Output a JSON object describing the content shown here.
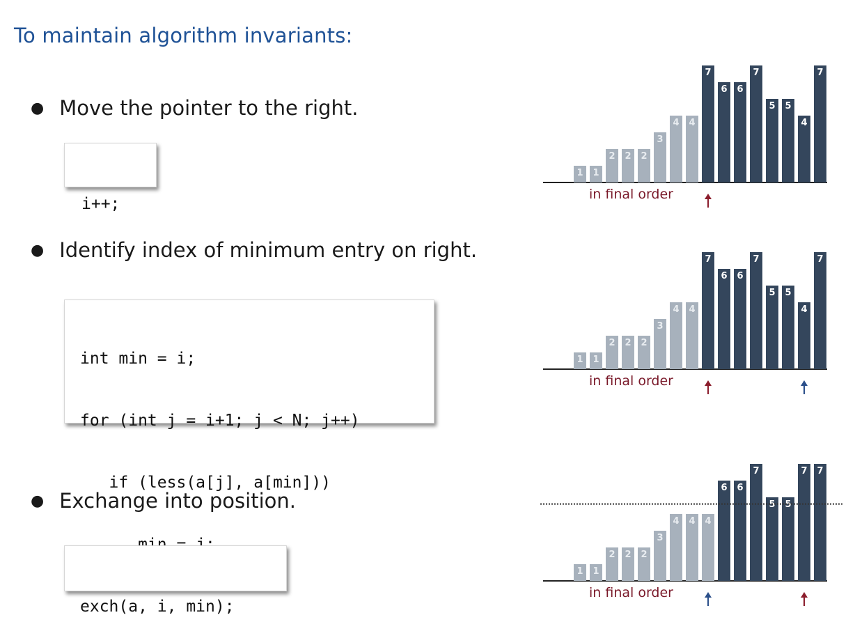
{
  "title": "To maintain algorithm invariants:",
  "steps": [
    {
      "text": "Move the pointer to the right.",
      "code": [
        "i++;"
      ]
    },
    {
      "text": "Identify index of minimum entry on right.",
      "code": [
        "int min = i;",
        "for (int j = i+1; j < N; j++)",
        "   if (less(a[j], a[min]))",
        "      min = j;"
      ]
    },
    {
      "text": "Exchange into position.",
      "code": [
        "exch(a, i, min);"
      ]
    }
  ],
  "colors": {
    "title": "#1f5296",
    "sorted_bar": "#a7b1bc",
    "unsorted_bar": "#34465c",
    "arrow_i": "#8b1d2c",
    "arrow_min": "#2b4f8a",
    "caption": "#7a1a2a"
  },
  "chart_data": [
    {
      "type": "bar",
      "values": [
        1,
        1,
        2,
        2,
        2,
        3,
        4,
        4,
        7,
        6,
        6,
        7,
        5,
        5,
        4,
        7
      ],
      "sorted_count": 8,
      "ylim": [
        0,
        7
      ],
      "caption": "in final order",
      "pointers": [
        {
          "name": "i",
          "index": 8,
          "color": "#8b1d2c"
        }
      ],
      "dotted_line": false
    },
    {
      "type": "bar",
      "values": [
        1,
        1,
        2,
        2,
        2,
        3,
        4,
        4,
        7,
        6,
        6,
        7,
        5,
        5,
        4,
        7
      ],
      "sorted_count": 8,
      "ylim": [
        0,
        7
      ],
      "caption": "in final order",
      "pointers": [
        {
          "name": "i",
          "index": 8,
          "color": "#8b1d2c"
        },
        {
          "name": "min",
          "index": 14,
          "color": "#2b4f8a"
        }
      ],
      "dotted_line": false
    },
    {
      "type": "bar",
      "values": [
        1,
        1,
        2,
        2,
        2,
        3,
        4,
        4,
        4,
        6,
        6,
        7,
        5,
        5,
        7,
        7
      ],
      "sorted_count": 9,
      "ylim": [
        0,
        7
      ],
      "caption": "in final order",
      "pointers": [
        {
          "name": "i",
          "index": 8,
          "color": "#2b4f8a"
        },
        {
          "name": "min",
          "index": 14,
          "color": "#8b1d2c"
        }
      ],
      "dotted_line": true,
      "dotted_level": 4.6
    }
  ]
}
